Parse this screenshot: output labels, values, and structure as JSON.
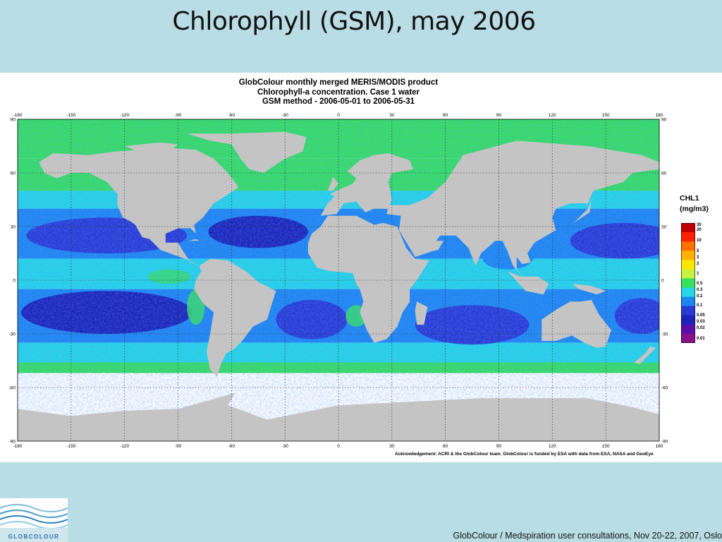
{
  "slide": {
    "title": "Chlorophyll (GSM), may 2006",
    "footer": "GlobColour / Medspiration user consultations, Nov 20-22, 2007, Oslo",
    "logo_text": "GLOBCOLOUR"
  },
  "product": {
    "title_lines": [
      "GlobColour monthly merged MERIS/MODIS product",
      "Chlorophyll-a concentration. Case 1 water",
      "GSM method - 2006-05-01 to 2006-05-31"
    ],
    "acknowledgement": "Acknowledgement: ACRI & the GlobColour team. GlobColour is funded by ESA with data from ESA, NASA and GeoEye"
  },
  "map": {
    "lon_ticks": [
      "-180",
      "-150",
      "-120",
      "-90",
      "-60",
      "-30",
      "0",
      "30",
      "60",
      "90",
      "120",
      "150",
      "180"
    ],
    "lat_ticks": [
      "90",
      "60",
      "30",
      "0",
      "-30",
      "-60",
      "-90"
    ],
    "colors": {
      "land": "#c4c4c4",
      "ice": "#ffffff",
      "oligotrophic": "#2a3ad4",
      "very_low": "#1c23b8",
      "low": "#1f86f0",
      "mid": "#26d6e6",
      "high": "#38e060",
      "very_high": "#c8f040"
    }
  },
  "colorbar": {
    "title": "CHL1",
    "unit": "(mg/m3)",
    "labels": [
      "30",
      "20",
      "10",
      "5",
      "3",
      "2",
      "1",
      "0.5",
      "0.3",
      "0.2",
      "0.1",
      "0.05",
      "0.03",
      "0.02",
      "0.01"
    ],
    "colors": [
      "#c00000",
      "#ff2000",
      "#ff7000",
      "#ffb000",
      "#ffe600",
      "#c8f040",
      "#38e060",
      "#26d6e6",
      "#1f86f0",
      "#2a3ad4",
      "#1c23b8",
      "#5a10a8",
      "#8a108a"
    ]
  }
}
